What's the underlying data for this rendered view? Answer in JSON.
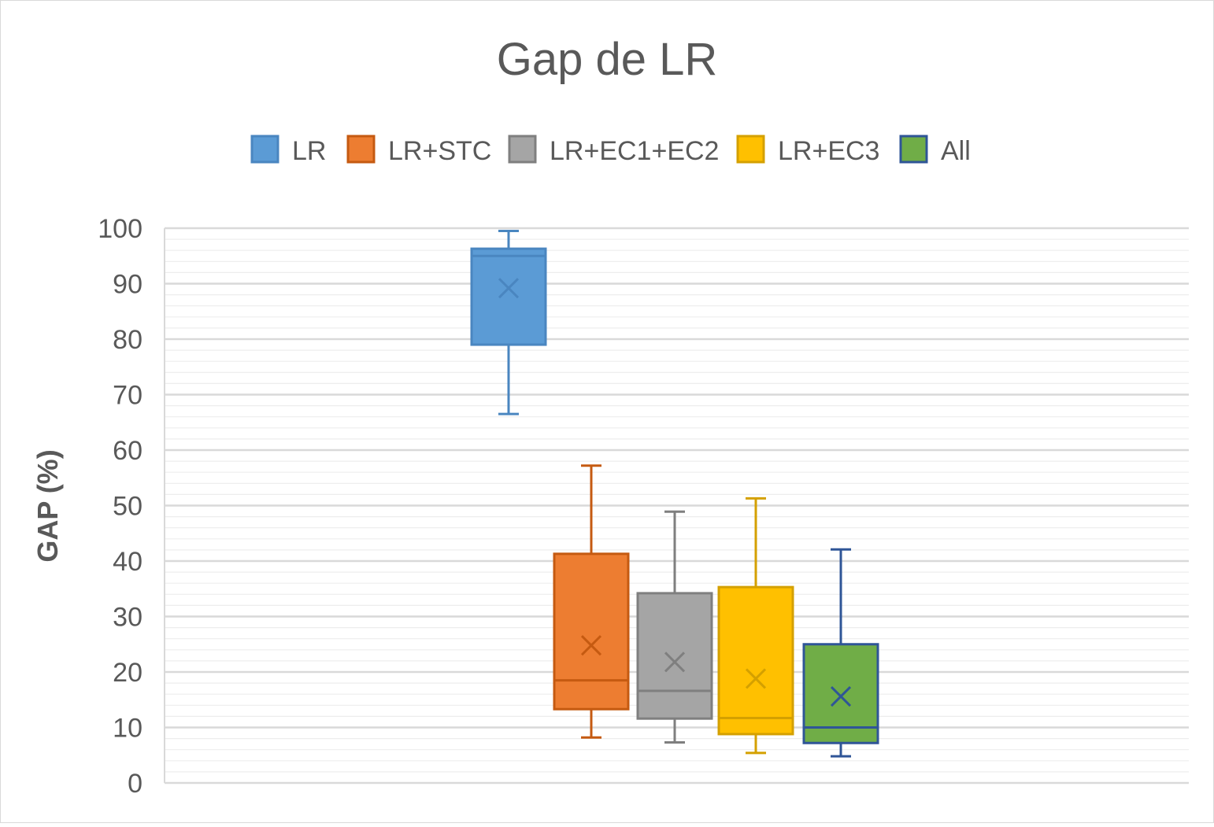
{
  "chart_data": {
    "type": "box",
    "title": "Gap de LR",
    "xlabel": "",
    "ylabel": "GAP (%)",
    "ylim": [
      0,
      100
    ],
    "y_ticks": [
      "0",
      "10",
      "20",
      "30",
      "40",
      "50",
      "60",
      "70",
      "80",
      "90",
      "100"
    ],
    "y_minor_step": 2,
    "grid": true,
    "legend_position": "top",
    "series": [
      {
        "name": "LR",
        "min": 66.5,
        "q1": 79,
        "median": 95,
        "q3": 96.3,
        "max": 99.5,
        "mean": 89.2,
        "color": "#5B9BD5",
        "stroke": "#4A86C0"
      },
      {
        "name": "LR+STC",
        "min": 8.2,
        "q1": 13.3,
        "median": 18.5,
        "q3": 41.3,
        "max": 57.2,
        "mean": 24.8,
        "color": "#ED7D31",
        "stroke": "#C55A11"
      },
      {
        "name": "LR+EC1+EC2",
        "min": 7.3,
        "q1": 11.6,
        "median": 16.6,
        "q3": 34.2,
        "max": 48.9,
        "mean": 21.8,
        "color": "#A5A5A5",
        "stroke": "#7F7F7F"
      },
      {
        "name": "LR+EC3",
        "min": 5.4,
        "q1": 8.8,
        "median": 11.7,
        "q3": 35.3,
        "max": 51.3,
        "mean": 18.8,
        "color": "#FFC000",
        "stroke": "#D4A000"
      },
      {
        "name": "All",
        "min": 4.8,
        "q1": 7.2,
        "median": 10.0,
        "q3": 25.0,
        "max": 42.1,
        "mean": 15.6,
        "color": "#70AD47",
        "stroke": "#2F5597"
      }
    ]
  }
}
